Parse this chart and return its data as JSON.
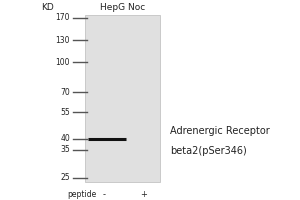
{
  "title": "HepG Noc",
  "kd_label": "KD",
  "ladder_marks": [
    170,
    130,
    100,
    70,
    55,
    40,
    35,
    25
  ],
  "band_kd": 40,
  "lane_label": "peptide",
  "lane_minus": "-",
  "lane_plus": "+",
  "annotation_line1": "Adrenergic Receptor",
  "annotation_line2": "beta2(pSer346)",
  "gel_bg_color": "#e0e0e0",
  "band_color": "#111111",
  "ladder_color": "#333333",
  "tick_color": "#555555",
  "text_color": "#222222",
  "fig_bg": "#ffffff",
  "kd_min": 25,
  "kd_max": 170
}
